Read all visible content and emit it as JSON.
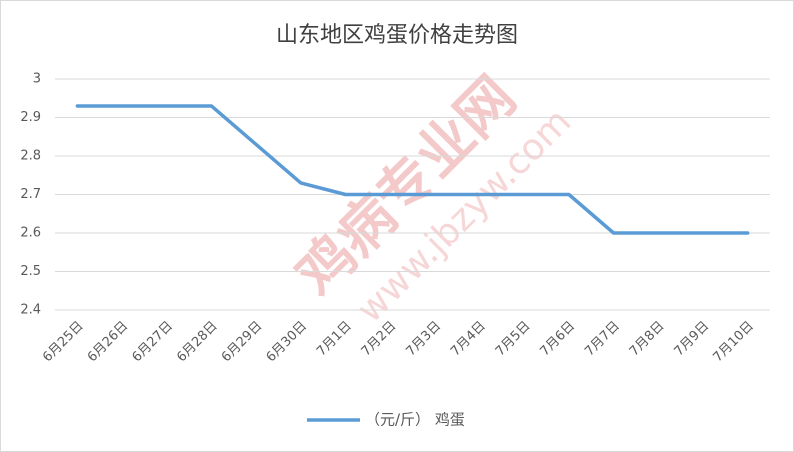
{
  "chart_data": {
    "type": "line",
    "title": "山东地区鸡蛋价格走势图",
    "categories": [
      "6月25日",
      "6月26日",
      "6月27日",
      "6月28日",
      "6月29日",
      "6月30日",
      "7月1日",
      "7月2日",
      "7月3日",
      "7月4日",
      "7月5日",
      "7月6日",
      "7月7日",
      "7月8日",
      "7月9日",
      "7月10日"
    ],
    "series": [
      {
        "name": "（元/斤） 鸡蛋",
        "color": "#5b9bd5",
        "values": [
          2.93,
          2.93,
          2.93,
          2.93,
          2.83,
          2.73,
          2.7,
          2.7,
          2.7,
          2.7,
          2.7,
          2.7,
          2.6,
          2.6,
          2.6,
          2.6
        ]
      }
    ],
    "ylim": [
      2.4,
      3
    ],
    "yticks": [
      2.4,
      2.5,
      2.6,
      2.7,
      2.8,
      2.9,
      3
    ],
    "grid": true,
    "legend": "bottom",
    "watermark": [
      "鸡病专业网",
      "www.jbzyw.com"
    ]
  }
}
